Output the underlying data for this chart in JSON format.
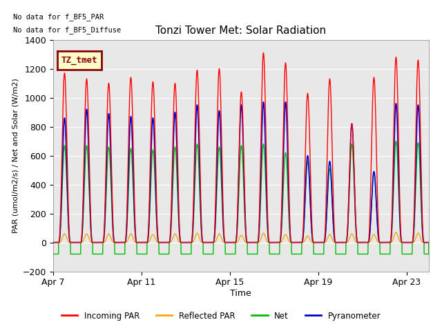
{
  "title": "Tonzi Tower Met: Solar Radiation",
  "xlabel": "Time",
  "ylabel": "PAR (umol/m2/s) / Net and Solar (W/m2)",
  "ylim": [
    -200,
    1400
  ],
  "yticks": [
    -200,
    0,
    200,
    400,
    600,
    800,
    1000,
    1200,
    1400
  ],
  "xlim_days": [
    0,
    17
  ],
  "xtick_labels": [
    "Apr 7",
    "Apr 11",
    "Apr 15",
    "Apr 19",
    "Apr 23"
  ],
  "xtick_positions": [
    0,
    4,
    8,
    12,
    16
  ],
  "no_data_text1": "No data for f_BF5_PAR",
  "no_data_text2": "No data for f_BF5_Diffuse",
  "legend_entries": [
    "Incoming PAR",
    "Reflected PAR",
    "Net",
    "Pyranometer"
  ],
  "legend_colors": [
    "#ff0000",
    "#ffa500",
    "#00bb00",
    "#0000cc"
  ],
  "tag_label": "TZ_tmet",
  "tag_bg": "#ffffcc",
  "tag_fg": "#8b0000",
  "plot_bg": "#e8e8e8",
  "fig_bg": "#ffffff",
  "n_days": 17,
  "points_per_day": 288,
  "incoming_peaks": [
    1170,
    1130,
    1100,
    1140,
    1110,
    1100,
    1190,
    1200,
    1040,
    1310,
    1240,
    1030,
    1130,
    820,
    1140,
    1280,
    1260
  ],
  "pyranometer_peaks": [
    860,
    920,
    890,
    870,
    860,
    900,
    950,
    910,
    950,
    970,
    970,
    600,
    560,
    820,
    490,
    960,
    950
  ],
  "net_peaks": [
    670,
    670,
    660,
    650,
    640,
    660,
    680,
    660,
    670,
    680,
    620,
    560,
    510,
    680,
    480,
    700,
    690
  ],
  "reflected_peaks": [
    60,
    60,
    60,
    60,
    55,
    60,
    65,
    60,
    50,
    65,
    55,
    45,
    55,
    60,
    55,
    70,
    65
  ],
  "net_nighttime": -80,
  "day_start": 0.25,
  "day_end": 0.79,
  "sharpness": 2.5
}
